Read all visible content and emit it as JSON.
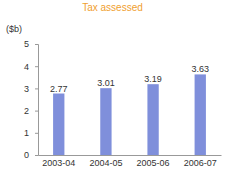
{
  "chart_data": {
    "type": "bar",
    "title": "Tax assessed",
    "y_label": "($b)",
    "categories": [
      "2003-04",
      "2004-05",
      "2005-06",
      "2006-07"
    ],
    "values": [
      2.77,
      3.01,
      3.19,
      3.63
    ],
    "color": "#7f8fdb",
    "ylim": [
      0,
      5
    ],
    "yticks": [
      0,
      1,
      2,
      3,
      4,
      5
    ],
    "grid": false,
    "data_labels": true
  }
}
